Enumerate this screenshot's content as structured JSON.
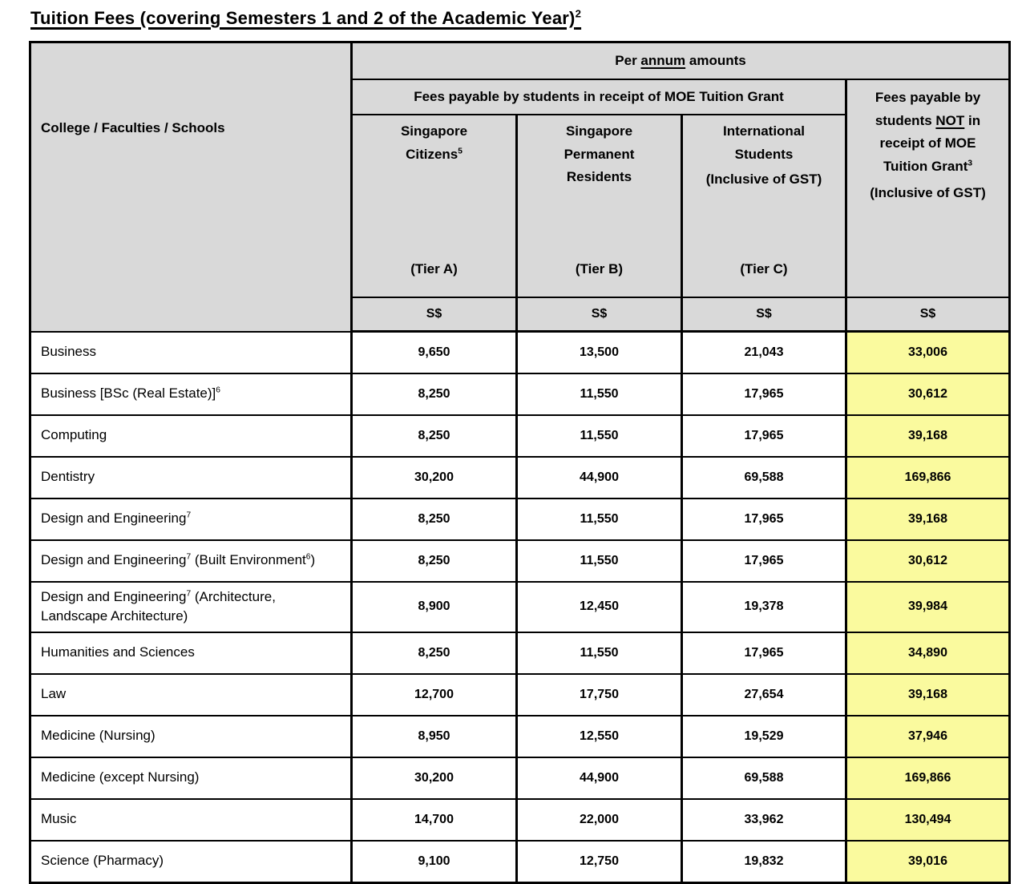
{
  "title": "Tuition Fees (covering Semesters 1 and 2 of the Academic Year)^2",
  "table": {
    "row_header_label": "College / Faculties / Schools",
    "per_annum_header": "Per *annum* amounts",
    "grant_group_header": "Fees payable by students in receipt of MOE Tuition Grant",
    "no_grant_header": "Fees payable by|students *NOT* in|receipt of MOE|Tuition Grant^3",
    "no_grant_gst": "(Inclusive of GST)",
    "tier_columns": [
      {
        "name": "Singapore|Citizens^5",
        "gst": "",
        "tier": "(Tier A)"
      },
      {
        "name": "Singapore|Permanent|Residents",
        "gst": "",
        "tier": "(Tier B)"
      },
      {
        "name": "International|Students",
        "gst": "(Inclusive of GST)",
        "tier": "(Tier C)"
      }
    ],
    "currency": "S$",
    "currency_columns": 4,
    "rows": [
      {
        "name": "Business",
        "values": [
          "9,650",
          "13,500",
          "21,043",
          "33,006"
        ]
      },
      {
        "name": "Business [BSc (Real Estate)]^6",
        "values": [
          "8,250",
          "11,550",
          "17,965",
          "30,612"
        ]
      },
      {
        "name": "Computing",
        "values": [
          "8,250",
          "11,550",
          "17,965",
          "39,168"
        ]
      },
      {
        "name": "Dentistry",
        "values": [
          "30,200",
          "44,900",
          "69,588",
          "169,866"
        ]
      },
      {
        "name": "Design and Engineering^7",
        "values": [
          "8,250",
          "11,550",
          "17,965",
          "39,168"
        ]
      },
      {
        "name": "Design and Engineering^7 (Built Environment^6)",
        "values": [
          "8,250",
          "11,550",
          "17,965",
          "30,612"
        ]
      },
      {
        "name": "Design and Engineering^7 (Architecture,|Landscape Architecture)",
        "values": [
          "8,900",
          "12,450",
          "19,378",
          "39,984"
        ]
      },
      {
        "name": "Humanities and Sciences",
        "values": [
          "8,250",
          "11,550",
          "17,965",
          "34,890"
        ]
      },
      {
        "name": "Law",
        "values": [
          "12,700",
          "17,750",
          "27,654",
          "39,168"
        ]
      },
      {
        "name": "Medicine (Nursing)",
        "values": [
          "8,950",
          "12,550",
          "19,529",
          "37,946"
        ]
      },
      {
        "name": "Medicine (except Nursing)",
        "values": [
          "30,200",
          "44,900",
          "69,588",
          "169,866"
        ]
      },
      {
        "name": "Music",
        "values": [
          "14,700",
          "22,000",
          "33,962",
          "130,494"
        ]
      },
      {
        "name": "Science (Pharmacy)",
        "values": [
          "9,100",
          "12,750",
          "19,832",
          "39,016"
        ]
      }
    ],
    "colors": {
      "header_bg": "#D9D9D9",
      "highlight_bg": "#FAFA9E",
      "border": "#000000"
    }
  }
}
